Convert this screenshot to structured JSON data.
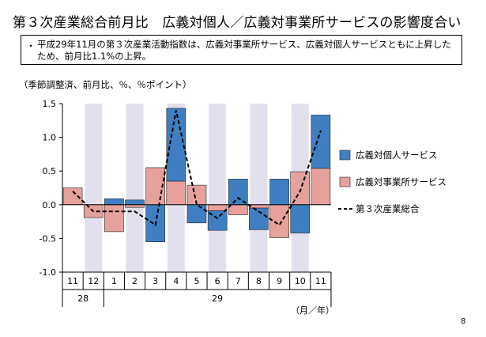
{
  "title": "第３次産業総合前月比　広義対個人／広義対事業所サービスの影響度合い",
  "note": {
    "bullet": "・",
    "text": "平成29年11月の第３次産業活動指数は、広義対事業所サービス、広義対個人サービスともに上昇したため、前月比1.1%の上昇。"
  },
  "unit_note": "（季節調整済、前月比、％、％ポイント）",
  "page_number": "8",
  "chart_data": {
    "type": "bar",
    "stacked": true,
    "categories": [
      "11",
      "12",
      "1",
      "2",
      "3",
      "4",
      "5",
      "6",
      "7",
      "8",
      "9",
      "10",
      "11"
    ],
    "year_labels": [
      {
        "label": "28",
        "span": [
          0,
          1
        ]
      },
      {
        "label": "29",
        "span": [
          2,
          12
        ]
      }
    ],
    "x_unit_label": "（月／年）",
    "ylim": [
      -1.0,
      1.5
    ],
    "yticks": [
      "1.5",
      "1.0",
      "0.5",
      "0.0",
      "-0.5",
      "-1.0"
    ],
    "ytick_values": [
      1.5,
      1.0,
      0.5,
      0.0,
      -0.5,
      -1.0
    ],
    "shaded_category_indices": [
      1,
      3,
      5,
      7,
      9,
      11
    ],
    "series": [
      {
        "name": "広義対事業所サービス",
        "kind": "bar",
        "color": "#e6a19c",
        "values": [
          0.25,
          -0.19,
          -0.4,
          -0.04,
          0.55,
          0.35,
          0.29,
          -0.09,
          -0.15,
          -0.05,
          -0.49,
          0.49,
          0.54
        ]
      },
      {
        "name": "広義対個人サービス",
        "kind": "bar",
        "color": "#3f7fc1",
        "values": [
          0.0,
          0.0,
          0.09,
          0.07,
          -0.55,
          1.08,
          -0.27,
          -0.29,
          0.38,
          -0.32,
          0.38,
          -0.42,
          0.79
        ]
      },
      {
        "name": "第３次産業総合",
        "kind": "line",
        "color": "#000000",
        "style": "dashed",
        "values": [
          0.2,
          -0.1,
          -0.1,
          -0.1,
          -0.3,
          1.4,
          0.0,
          -0.2,
          0.1,
          -0.1,
          -0.3,
          0.2,
          1.1
        ]
      }
    ],
    "legend_order": [
      "広義対個人サービス",
      "広義対事業所サービス",
      "第３次産業総合"
    ],
    "legend_position": "right",
    "grid": false
  }
}
